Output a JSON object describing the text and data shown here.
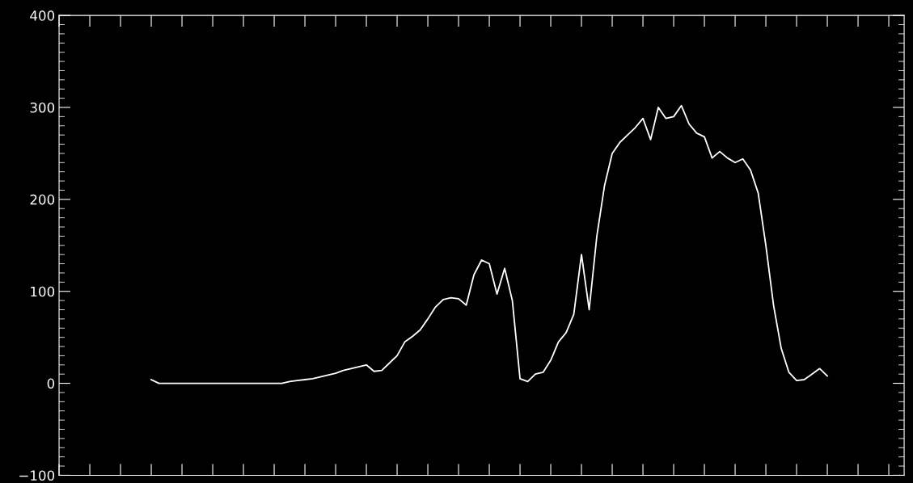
{
  "chart_data": {
    "type": "line",
    "tick_labels": "y",
    "ylim": [
      -100,
      400
    ],
    "yticks": [
      {
        "value": -100,
        "label": "−100"
      },
      0,
      100,
      200,
      300,
      400
    ],
    "categories": [
      null,
      null,
      null,
      null,
      null,
      null,
      null,
      null,
      null,
      null,
      null,
      null,
      null,
      null,
      null,
      null,
      null,
      null,
      null,
      null,
      null,
      null,
      null,
      null,
      null,
      null,
      null,
      null,
      null,
      null,
      null,
      null,
      null,
      null,
      null,
      null,
      null,
      null,
      null,
      null,
      null,
      null,
      null,
      null,
      null,
      null,
      null,
      null,
      null,
      null,
      null,
      null,
      null,
      null,
      null,
      null,
      null,
      null,
      null,
      null,
      null,
      null,
      null,
      null,
      null,
      null,
      null,
      null,
      null,
      null,
      null,
      null,
      null,
      null,
      null,
      null,
      null,
      null,
      null,
      null,
      null,
      null,
      null,
      null,
      null,
      null,
      null,
      null,
      null,
      null,
      null,
      null,
      null,
      null,
      null,
      null,
      null,
      null,
      null,
      null,
      null,
      null,
      null,
      null,
      null,
      null,
      null,
      null,
      null,
      null,
      null
    ],
    "series": [
      {
        "color": "#ffffff",
        "values": [
          null,
          null,
          null,
          null,
          null,
          null,
          null,
          null,
          null,
          null,
          null,
          null,
          4,
          0,
          0,
          0,
          0,
          0,
          0,
          0,
          0,
          0,
          0,
          0,
          0,
          0,
          0,
          0,
          0,
          0,
          2,
          3,
          4,
          5,
          7,
          9,
          11,
          14,
          16,
          18,
          20,
          13,
          14,
          22,
          30,
          45,
          51,
          58,
          70,
          83,
          91,
          93,
          92,
          85,
          118,
          134,
          130,
          97,
          125,
          90,
          5,
          2,
          10,
          12,
          25,
          45,
          55,
          75,
          140,
          80,
          160,
          215,
          250,
          262,
          270,
          278,
          288,
          265,
          300,
          288,
          290,
          302,
          282,
          272,
          268,
          245,
          252,
          245,
          240,
          244,
          232,
          207,
          150,
          85,
          38,
          12,
          3,
          4,
          10,
          16,
          8,
          null,
          null,
          null,
          null,
          null,
          null,
          null,
          null,
          null,
          null
        ]
      }
    ]
  }
}
